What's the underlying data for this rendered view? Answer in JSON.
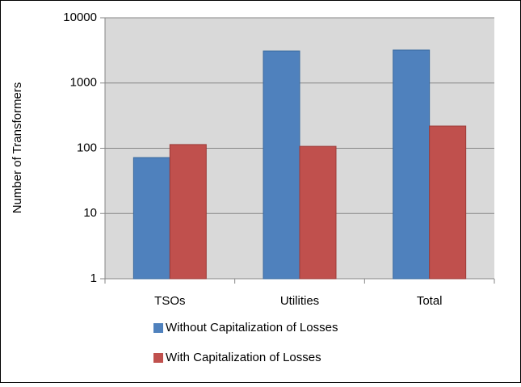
{
  "chart_data": {
    "type": "bar",
    "y_label": "Number of Transformers",
    "categories": [
      "TSOs",
      "Utilities",
      "Total"
    ],
    "series": [
      {
        "name": "Without Capitalization of Losses",
        "color": "#4f81bd",
        "values": [
          72,
          3100,
          3200
        ]
      },
      {
        "name": "With Capitalization of Losses",
        "color": "#c0504d",
        "values": [
          114,
          107,
          219
        ]
      }
    ],
    "ylim": [
      1,
      10000
    ],
    "yticks": [
      1,
      10,
      100,
      1000,
      10000
    ],
    "log_scale": true,
    "grid": true
  }
}
